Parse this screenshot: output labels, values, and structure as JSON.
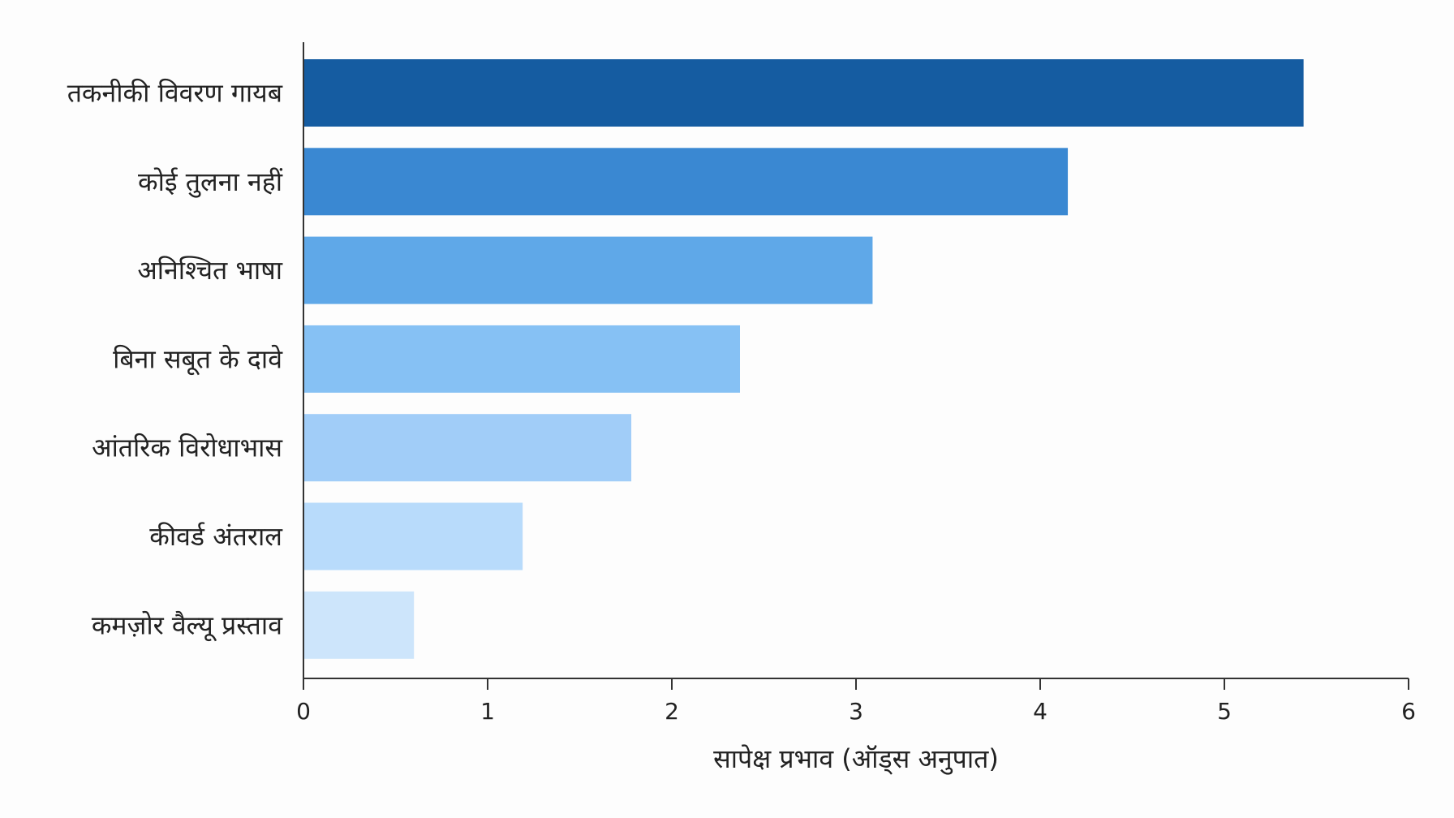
{
  "chart_data": {
    "type": "bar",
    "orientation": "horizontal",
    "categories": [
      "तकनीकी विवरण गायब",
      "कोई तुलना नहीं",
      "अनिश्चित भाषा",
      "बिना सबूत के दावे",
      "आंतरिक विरोधाभास",
      "कीवर्ड अंतराल",
      "कमज़ोर वैल्यू प्रस्ताव"
    ],
    "values": [
      5.43,
      4.15,
      3.09,
      2.37,
      1.78,
      1.19,
      0.6
    ],
    "colors": [
      "#155ca1",
      "#3a88d2",
      "#5fa8e8",
      "#86c1f4",
      "#a1cdf8",
      "#b8dbfb",
      "#cde5fb"
    ],
    "title": "",
    "xlabel": "सापेक्ष प्रभाव (ऑड्स अनुपात)",
    "ylabel": "",
    "xlim": [
      0,
      6
    ],
    "xticks": [
      "0",
      "1",
      "2",
      "3",
      "4",
      "5",
      "6"
    ],
    "grid": false,
    "legend": "none"
  }
}
